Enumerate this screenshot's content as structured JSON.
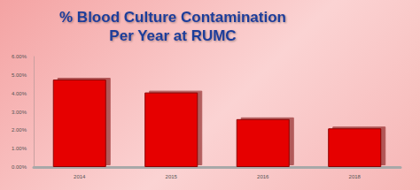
{
  "chart_data": {
    "type": "bar",
    "title": "% Blood Culture Contamination\nPer Year at RUMC",
    "categories": [
      "2014",
      "2015",
      "2016",
      "2018"
    ],
    "values": [
      4.75,
      4.05,
      2.6,
      2.1
    ],
    "color": "#e60000",
    "ylim": [
      0,
      6
    ],
    "yticks": [
      {
        "value": 0,
        "label": "0.00%"
      },
      {
        "value": 1,
        "label": "1.00%"
      },
      {
        "value": 2,
        "label": "2.00%"
      },
      {
        "value": 3,
        "label": "3.00%"
      },
      {
        "value": 4,
        "label": "4.00%"
      },
      {
        "value": 5,
        "label": "5.00%"
      },
      {
        "value": 6,
        "label": "6.00%"
      }
    ],
    "grid": false
  }
}
